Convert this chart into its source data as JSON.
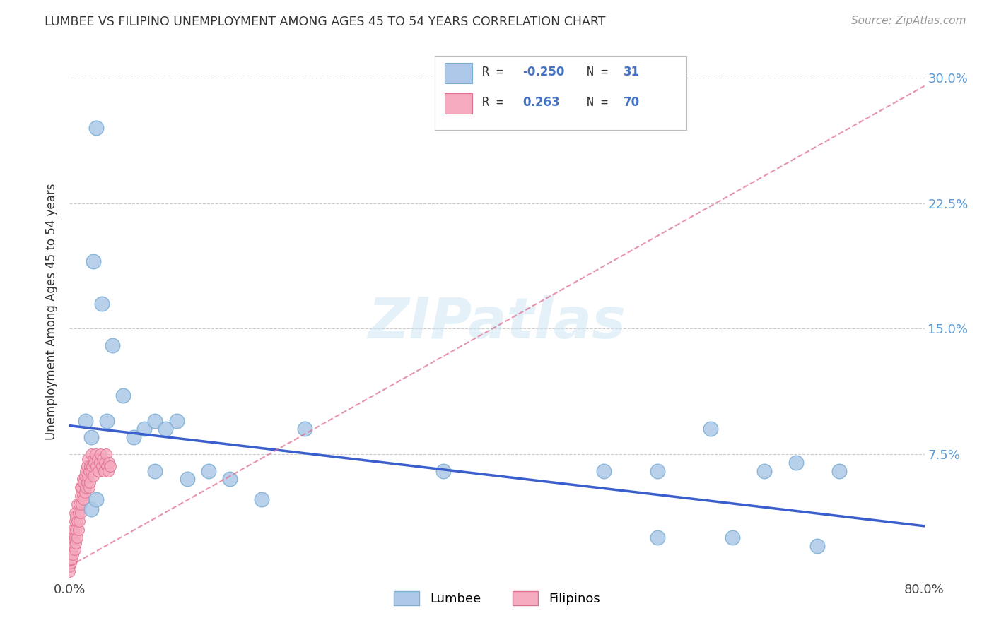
{
  "title": "LUMBEE VS FILIPINO UNEMPLOYMENT AMONG AGES 45 TO 54 YEARS CORRELATION CHART",
  "source": "Source: ZipAtlas.com",
  "ylabel": "Unemployment Among Ages 45 to 54 years",
  "xlim": [
    0.0,
    0.8
  ],
  "ylim": [
    0.0,
    0.32
  ],
  "xtick_vals": [
    0.0,
    0.1,
    0.2,
    0.3,
    0.4,
    0.5,
    0.6,
    0.7,
    0.8
  ],
  "xticklabels": [
    "0.0%",
    "",
    "",
    "",
    "",
    "",
    "",
    "",
    "80.0%"
  ],
  "ytick_vals": [
    0.0,
    0.075,
    0.15,
    0.225,
    0.3
  ],
  "yticklabels": [
    "",
    "7.5%",
    "15.0%",
    "22.5%",
    "30.0%"
  ],
  "lumbee_color": "#adc8e8",
  "filipino_color": "#f5aabf",
  "lumbee_edge": "#7aafd4",
  "filipino_edge": "#e07090",
  "trend_lumbee_color": "#3a5fcd",
  "trend_filipino_color": "#e07090",
  "watermark_text": "ZIPatlas",
  "lumbee_x": [
    0.015,
    0.02,
    0.022,
    0.025,
    0.03,
    0.035,
    0.04,
    0.05,
    0.06,
    0.07,
    0.08,
    0.1,
    0.13,
    0.15,
    0.18,
    0.08,
    0.09,
    0.11,
    0.02,
    0.025,
    0.22,
    0.35,
    0.5,
    0.55,
    0.6,
    0.65,
    0.68,
    0.72,
    0.55,
    0.62,
    0.7
  ],
  "lumbee_y": [
    0.095,
    0.085,
    0.19,
    0.27,
    0.165,
    0.095,
    0.14,
    0.11,
    0.085,
    0.09,
    0.095,
    0.095,
    0.065,
    0.06,
    0.048,
    0.065,
    0.09,
    0.06,
    0.042,
    0.048,
    0.09,
    0.065,
    0.065,
    0.065,
    0.09,
    0.065,
    0.07,
    0.065,
    0.025,
    0.025,
    0.02
  ],
  "filipino_x": [
    0.0,
    0.0,
    0.0,
    0.001,
    0.001,
    0.001,
    0.002,
    0.002,
    0.002,
    0.003,
    0.003,
    0.003,
    0.004,
    0.004,
    0.005,
    0.005,
    0.005,
    0.005,
    0.006,
    0.006,
    0.006,
    0.007,
    0.007,
    0.007,
    0.008,
    0.008,
    0.009,
    0.009,
    0.01,
    0.01,
    0.01,
    0.011,
    0.011,
    0.012,
    0.012,
    0.013,
    0.013,
    0.014,
    0.014,
    0.015,
    0.015,
    0.016,
    0.016,
    0.017,
    0.017,
    0.018,
    0.018,
    0.019,
    0.019,
    0.02,
    0.02,
    0.021,
    0.022,
    0.022,
    0.023,
    0.024,
    0.025,
    0.026,
    0.027,
    0.028,
    0.029,
    0.03,
    0.031,
    0.032,
    0.033,
    0.034,
    0.035,
    0.036,
    0.037,
    0.038
  ],
  "filipino_y": [
    0.005,
    0.008,
    0.012,
    0.01,
    0.015,
    0.02,
    0.012,
    0.018,
    0.025,
    0.015,
    0.022,
    0.028,
    0.02,
    0.03,
    0.018,
    0.025,
    0.035,
    0.04,
    0.022,
    0.03,
    0.038,
    0.025,
    0.035,
    0.045,
    0.03,
    0.04,
    0.035,
    0.045,
    0.04,
    0.05,
    0.055,
    0.045,
    0.055,
    0.05,
    0.06,
    0.048,
    0.058,
    0.052,
    0.062,
    0.055,
    0.065,
    0.058,
    0.068,
    0.062,
    0.072,
    0.065,
    0.055,
    0.068,
    0.058,
    0.065,
    0.075,
    0.068,
    0.072,
    0.062,
    0.07,
    0.075,
    0.068,
    0.072,
    0.065,
    0.07,
    0.075,
    0.068,
    0.072,
    0.065,
    0.07,
    0.075,
    0.068,
    0.065,
    0.07,
    0.068
  ],
  "blue_line_x0": 0.0,
  "blue_line_y0": 0.092,
  "blue_line_x1": 0.8,
  "blue_line_y1": 0.032,
  "pink_line_x0": 0.0,
  "pink_line_y0": 0.008,
  "pink_line_x1": 0.8,
  "pink_line_y1": 0.295
}
